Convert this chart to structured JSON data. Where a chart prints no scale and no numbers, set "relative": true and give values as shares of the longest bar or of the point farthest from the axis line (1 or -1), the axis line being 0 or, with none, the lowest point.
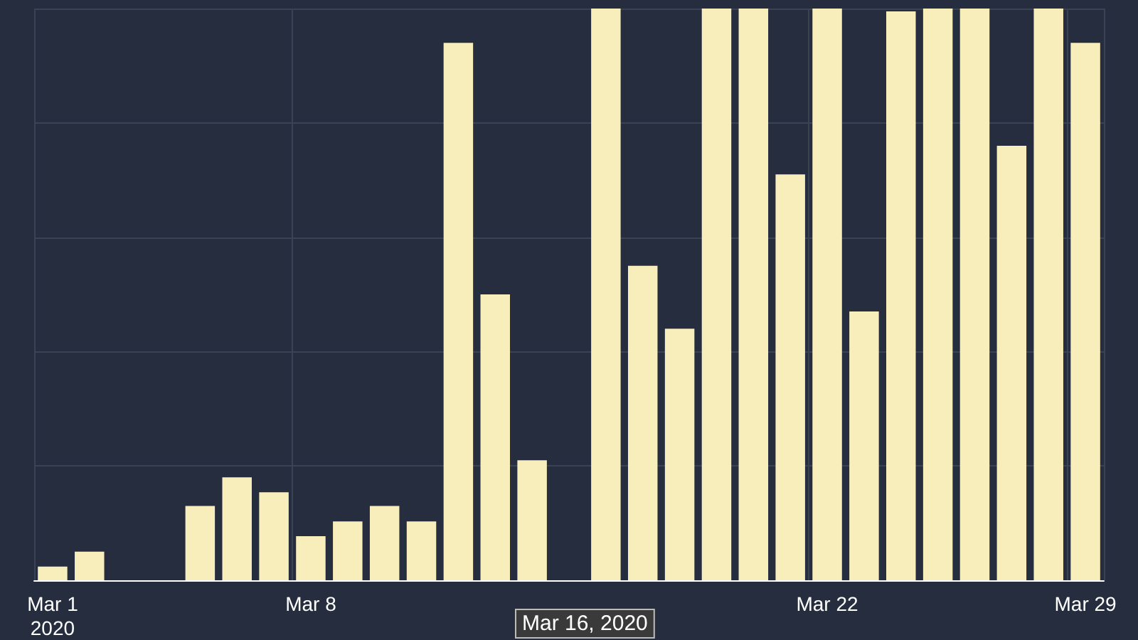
{
  "chart_data": {
    "type": "bar",
    "relative": true,
    "categories": [
      "Mar 1\n2020",
      null,
      null,
      null,
      null,
      null,
      null,
      "Mar 8",
      null,
      null,
      null,
      null,
      null,
      null,
      null,
      null,
      null,
      null,
      null,
      null,
      null,
      "Mar 22",
      null,
      null,
      null,
      null,
      null,
      null,
      "Mar 29"
    ],
    "values": [
      0.024,
      0.05,
      0,
      0,
      0.13,
      0.18,
      0.154,
      0.077,
      0.103,
      0.13,
      0.103,
      0.94,
      0.5,
      0.21,
      0,
      1,
      0.55,
      0.44,
      1,
      1,
      0.71,
      1,
      0.47,
      0.995,
      1,
      1,
      0.76,
      1,
      0.94
    ],
    "color": "#f8eebc",
    "grid": true,
    "annotations": [
      "Mar 16, 2020"
    ]
  }
}
